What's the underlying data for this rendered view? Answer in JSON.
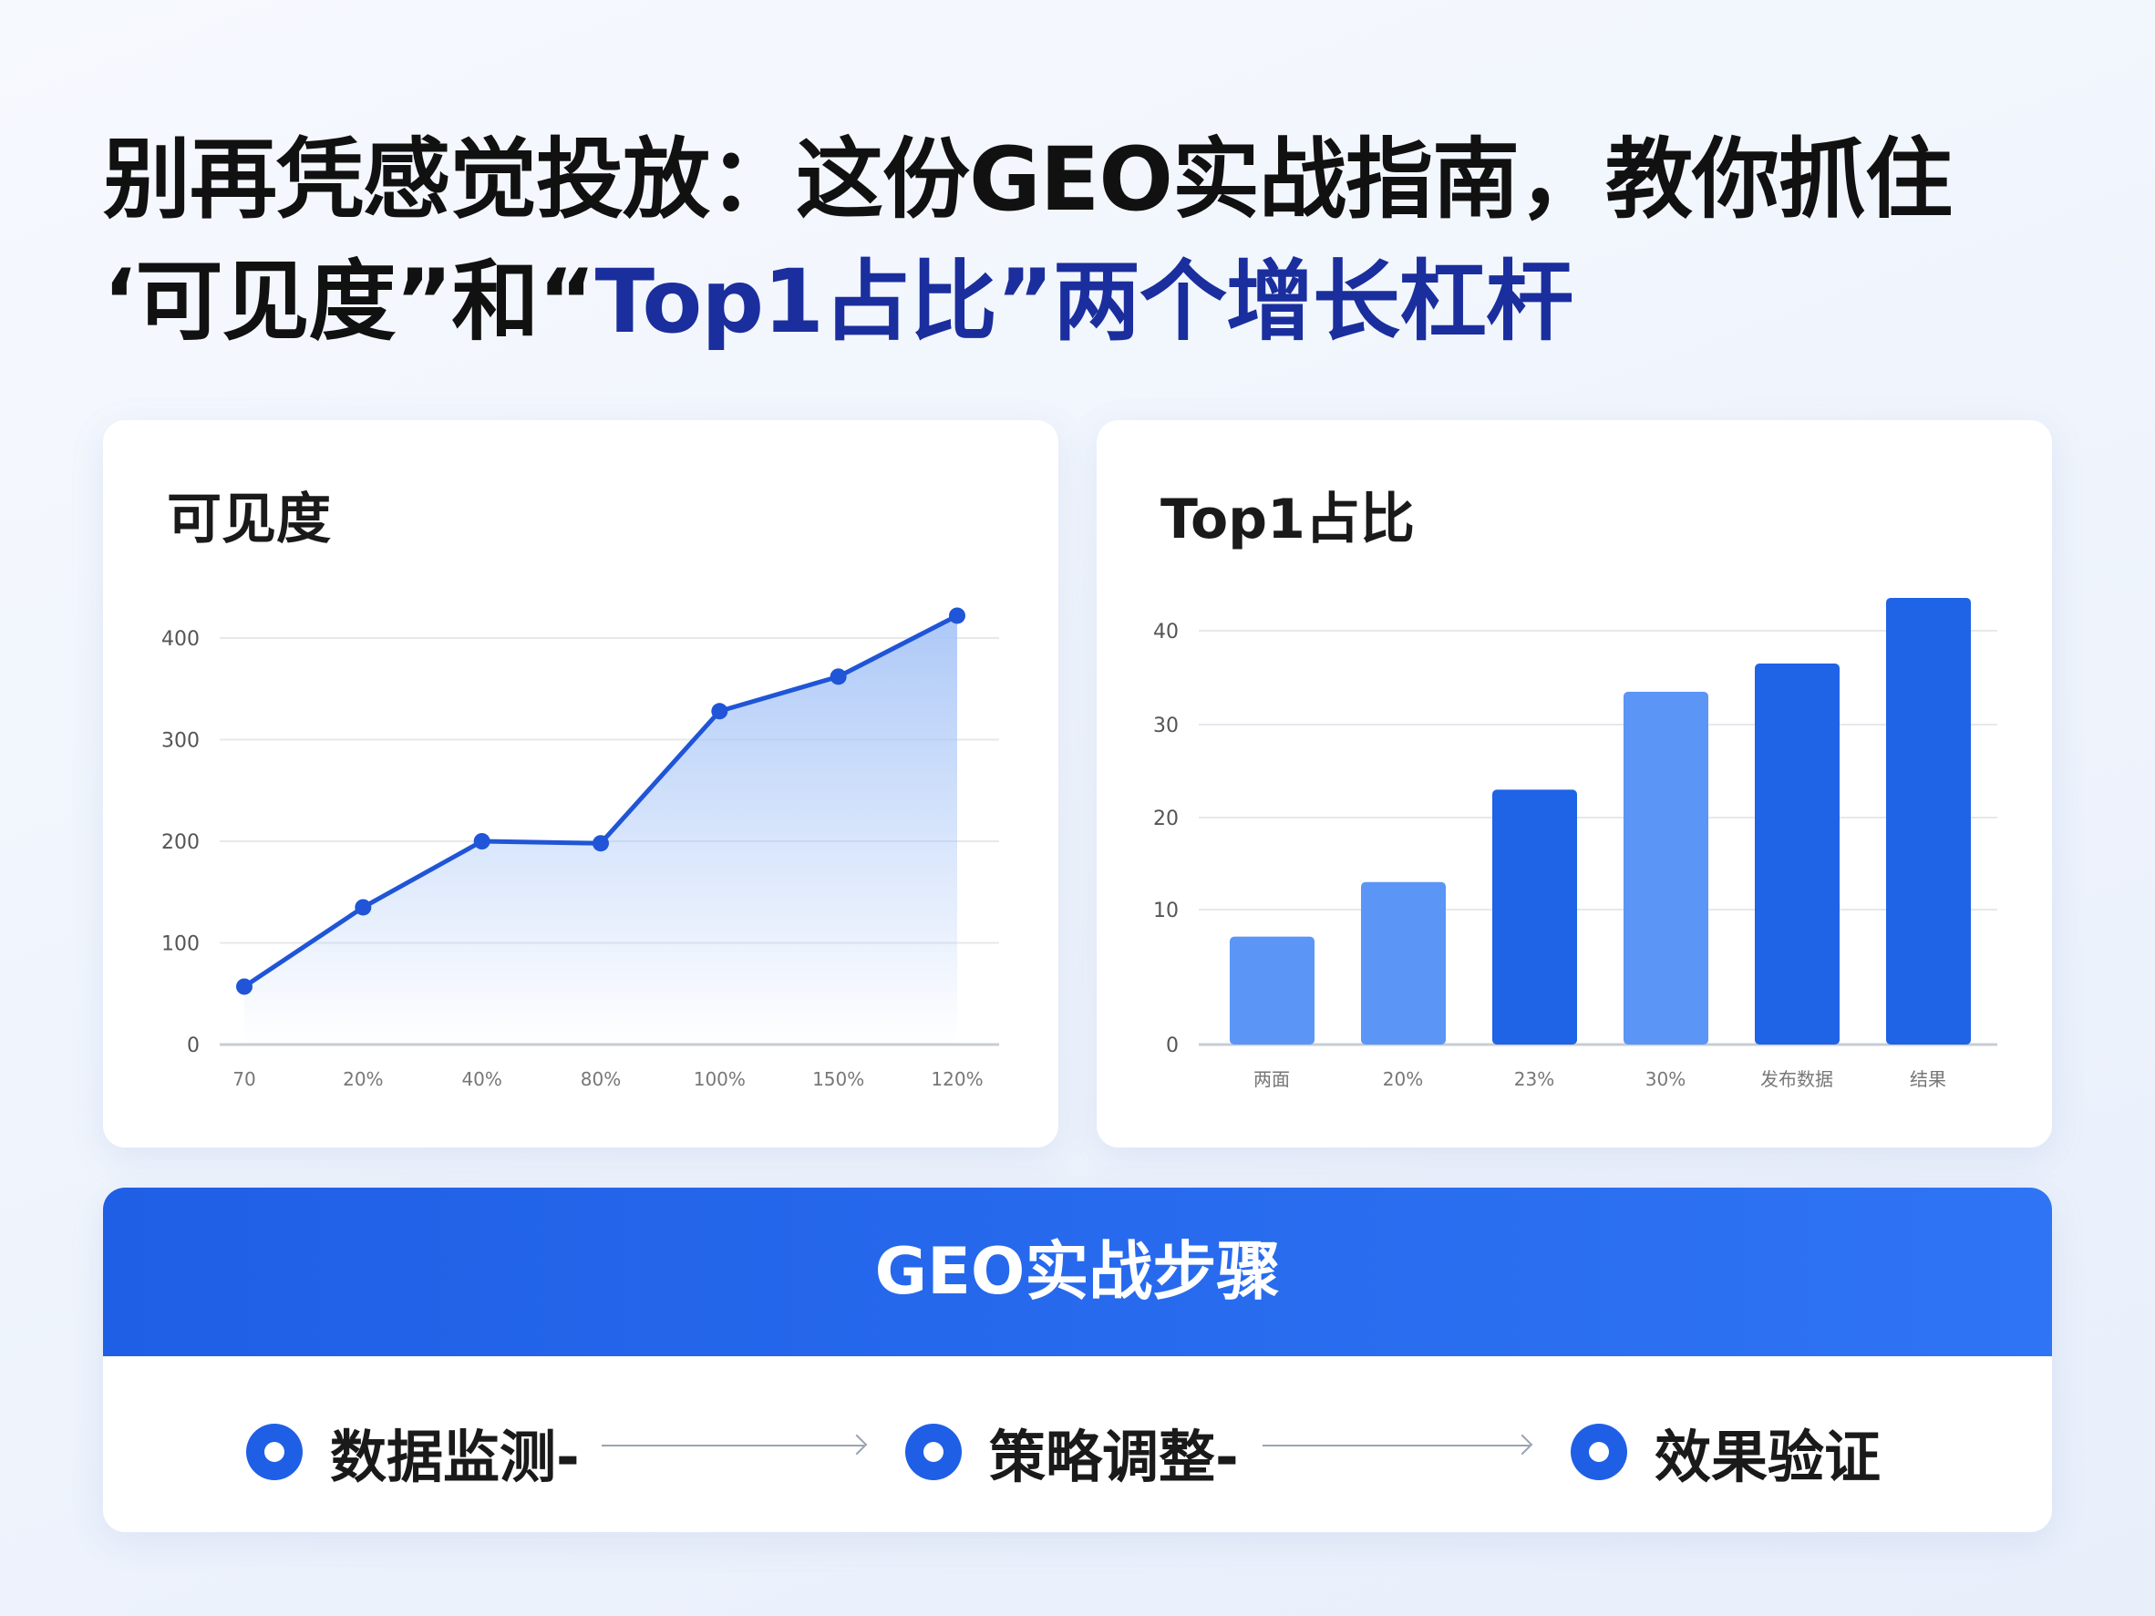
{
  "title": {
    "line1": "别再凭感觉投放：这份GEO实战指南，教你抓住",
    "line2_a": "‘可见度”和“",
    "line2_b": "Top1占比”两个增长杠杆"
  },
  "colors": {
    "title_highlight": "#1a2e9e",
    "accent": "#1f5fe6",
    "bar_light": "#5b95f5",
    "bar_dark": "#1f63e6",
    "area_fill": "#a9c6f7"
  },
  "chart_data": [
    {
      "type": "area",
      "title": "可见度",
      "categories": [
        "70",
        "20%",
        "40%",
        "80%",
        "100%",
        "150%",
        "120%"
      ],
      "values": [
        57,
        135,
        200,
        198,
        328,
        362,
        422
      ],
      "yticks": [
        0,
        100,
        200,
        300,
        400
      ],
      "ylim": [
        0,
        400
      ],
      "grid": true
    },
    {
      "type": "bar",
      "title": "Top1占比",
      "categories": [
        "两面",
        "20%",
        "23%",
        "30%",
        "发布数据",
        "结果"
      ],
      "values": [
        8,
        13,
        23,
        33.5,
        36.5,
        43.5
      ],
      "bar_shade": [
        "light",
        "light",
        "dark",
        "light",
        "dark",
        "dark"
      ],
      "yticks": [
        0,
        10,
        20,
        30,
        40
      ],
      "ylim": [
        0,
        40
      ],
      "grid": true
    }
  ],
  "steps": {
    "header": "GEO实战步骤",
    "items": [
      "数据监测-",
      "策略调整-",
      "效果验证"
    ]
  }
}
